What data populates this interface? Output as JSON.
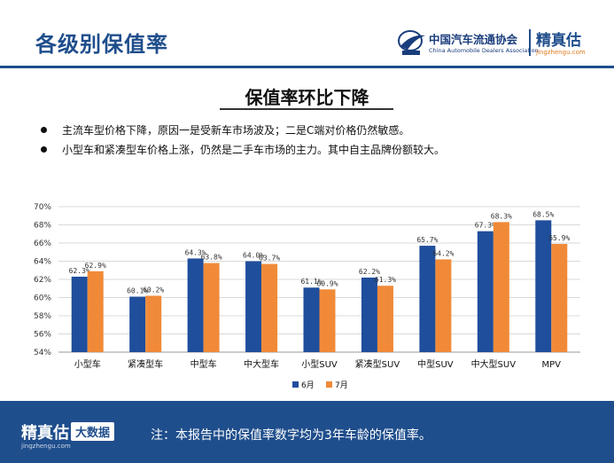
{
  "header": {
    "title": "各级别保值率",
    "org_name": "中国汽车流通协会",
    "org_name_en": "China Automobile Dealers Association",
    "brand_name": "精真估",
    "brand_url": "jingzhengu.com"
  },
  "subtitle": "保值率环比下降",
  "bullets": [
    "主流车型价格下降，原因一是受新车市场波及；二是C端对价格仍然敏感。",
    "小型车和紧凑型车价格上涨，仍然是二手车市场的主力。其中自主品牌份额较大。"
  ],
  "chart_data": {
    "type": "bar",
    "categories": [
      "小型车",
      "紧凑型车",
      "中型车",
      "中大型车",
      "小型SUV",
      "紧凑型SUV",
      "中型SUV",
      "中大型SUV",
      "MPV"
    ],
    "series": [
      {
        "name": "6月",
        "values": [
          62.3,
          60.1,
          64.3,
          64.0,
          61.1,
          62.2,
          65.7,
          67.3,
          68.5
        ],
        "labels": [
          "62.3%",
          "60.1%",
          "64.3%",
          "64.0%",
          "61.1%",
          "62.2%",
          "65.7%",
          "67.3%",
          "68.5%"
        ],
        "color": "#1f4e9c"
      },
      {
        "name": "7月",
        "values": [
          62.9,
          60.2,
          63.8,
          63.7,
          60.9,
          61.3,
          64.2,
          68.3,
          65.9
        ],
        "labels": [
          "62.9%",
          "60.2%",
          "63.8%",
          "63.7%",
          "60.9%",
          "61.3%",
          "64.2%",
          "68.3%",
          "65.9%"
        ],
        "color": "#f08a38"
      }
    ],
    "ylim": [
      54,
      70
    ],
    "yticks": [
      54,
      56,
      58,
      60,
      62,
      64,
      66,
      68,
      70
    ],
    "ytick_labels": [
      "54%",
      "56%",
      "58%",
      "60%",
      "62%",
      "64%",
      "66%",
      "68%",
      "70%"
    ],
    "grid": true,
    "legend": "bottom-center",
    "title": "",
    "xlabel": "",
    "ylabel": ""
  },
  "footer": {
    "brand_name": "精真估",
    "brand_url": "jingzhengu.com",
    "badge": "大数据",
    "note": "注：本报告中的保值率数字均为3年车龄的保值率。"
  }
}
